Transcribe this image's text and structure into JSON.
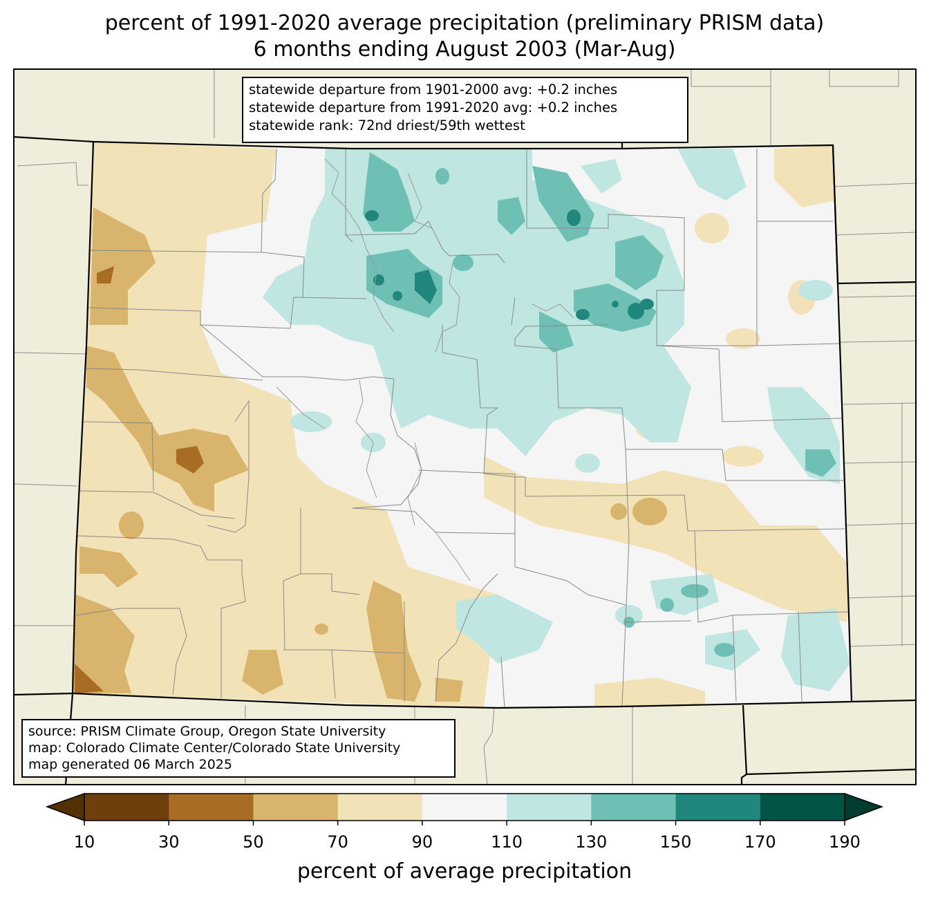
{
  "title": {
    "line1": "percent of 1991-2020 average precipitation (preliminary PRISM data)",
    "line2": "6 months ending August 2003 (Mar-Aug)"
  },
  "stats": {
    "line1": "statewide departure from 1901-2000 avg: +0.2 inches",
    "line2": "statewide departure from 1991-2020 avg: +0.2 inches",
    "line3": "statewide rank: 72nd driest/59th wettest"
  },
  "source": {
    "line1": "source: PRISM Climate Group, Oregon State University",
    "line2": "map: Colorado Climate Center/Colorado State University",
    "line3": "map generated 06 March 2025"
  },
  "colorbar": {
    "label": "percent of average precipitation",
    "ticks": [
      "10",
      "30",
      "50",
      "70",
      "90",
      "110",
      "130",
      "150",
      "170",
      "190"
    ],
    "under_color": "#543005",
    "over_color": "#003c30",
    "colors": [
      "#6e3f0c",
      "#a86c24",
      "#d8b46c",
      "#f2e2b8",
      "#f4f5f4",
      "#bfe6e0",
      "#6fc0b4",
      "#21877d",
      "#015547"
    ]
  },
  "colors": {
    "background_land": "#efeedb",
    "state_fill": "#f4f5f4"
  }
}
